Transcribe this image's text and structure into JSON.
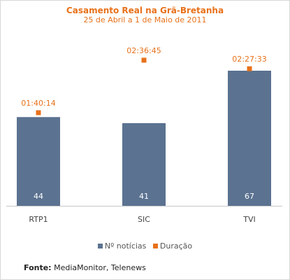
{
  "chart_data": {
    "type": "bar",
    "title": "Casamento Real na Grã-Bretanha",
    "subtitle": "25 de Abril a 1 de Maio de 2011",
    "categories": [
      "RTP1",
      "SIC",
      "TVI"
    ],
    "series": [
      {
        "name": "Nº notícias",
        "values": [
          44,
          41,
          67
        ],
        "labels": [
          "44",
          "41",
          "67"
        ],
        "color": "#5b7290",
        "kind": "bar"
      },
      {
        "name": "Duração",
        "values": [
          "01:40:14",
          "02:36:45",
          "02:27:33"
        ],
        "labels": [
          "01:40:14",
          "02:36:45",
          "02:27:33"
        ],
        "color": "#e8711a",
        "kind": "marker"
      }
    ],
    "grid": false,
    "legend": "bottom"
  },
  "source": {
    "label": "Fonte:",
    "text": " MediaMonitor, Telenews"
  },
  "colors": {
    "accent": "#e8711a",
    "bar": "#5b7290",
    "axis": "#c8c8c8"
  }
}
